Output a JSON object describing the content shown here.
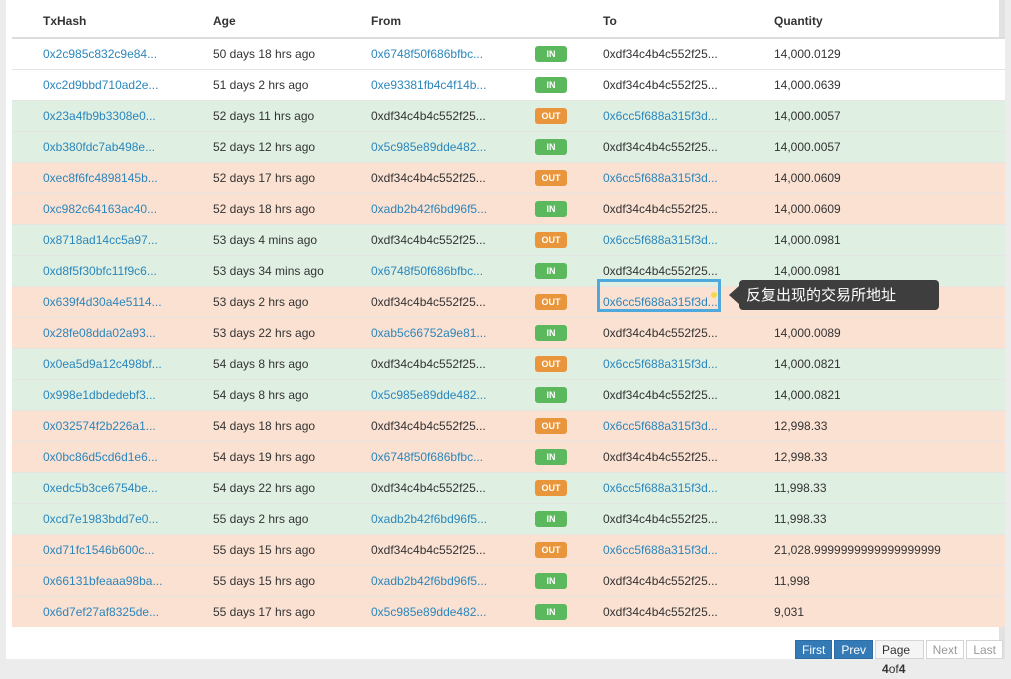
{
  "table": {
    "headers": [
      "TxHash",
      "Age",
      "From",
      "",
      "To",
      "Quantity"
    ],
    "rows": [
      {
        "hash": "0x2c985c832c9e84...",
        "age": "50 days 18 hrs ago",
        "from": "0x6748f50f686bfbc...",
        "from_link": true,
        "dir": "IN",
        "to": "0xdf34c4b4c552f25...",
        "to_link": false,
        "qty": "14,000.0129",
        "tone": "in-row"
      },
      {
        "hash": "0xc2d9bbd710ad2e...",
        "age": "51 days 2 hrs ago",
        "from": "0xe93381fb4c4f14b...",
        "from_link": true,
        "dir": "IN",
        "to": "0xdf34c4b4c552f25...",
        "to_link": false,
        "qty": "14,000.0639",
        "tone": "in-row"
      },
      {
        "hash": "0x23a4fb9b3308e0...",
        "age": "52 days 11 hrs ago",
        "from": "0xdf34c4b4c552f25...",
        "from_link": false,
        "dir": "OUT",
        "to": "0x6cc5f688a315f3d...",
        "to_link": true,
        "qty": "14,000.0057",
        "tone": "green-row"
      },
      {
        "hash": "0xb380fdc7ab498e...",
        "age": "52 days 12 hrs ago",
        "from": "0x5c985e89dde482...",
        "from_link": true,
        "dir": "IN",
        "to": "0xdf34c4b4c552f25...",
        "to_link": false,
        "qty": "14,000.0057",
        "tone": "green-row"
      },
      {
        "hash": "0xec8f6fc4898145b...",
        "age": "52 days 17 hrs ago",
        "from": "0xdf34c4b4c552f25...",
        "from_link": false,
        "dir": "OUT",
        "to": "0x6cc5f688a315f3d...",
        "to_link": true,
        "qty": "14,000.0609",
        "tone": "orange-row"
      },
      {
        "hash": "0xc982c64163ac40...",
        "age": "52 days 18 hrs ago",
        "from": "0xadb2b42f6bd96f5...",
        "from_link": true,
        "dir": "IN",
        "to": "0xdf34c4b4c552f25...",
        "to_link": false,
        "qty": "14,000.0609",
        "tone": "orange-row"
      },
      {
        "hash": "0x8718ad14cc5a97...",
        "age": "53 days 4 mins ago",
        "from": "0xdf34c4b4c552f25...",
        "from_link": false,
        "dir": "OUT",
        "to": "0x6cc5f688a315f3d...",
        "to_link": true,
        "qty": "14,000.0981",
        "tone": "green-row"
      },
      {
        "hash": "0xd8f5f30bfc11f9c6...",
        "age": "53 days 34 mins ago",
        "from": "0x6748f50f686bfbc...",
        "from_link": true,
        "dir": "IN",
        "to": "0xdf34c4b4c552f25...",
        "to_link": false,
        "qty": "14,000.0981",
        "tone": "green-row"
      },
      {
        "hash": "0x639f4d30a4e5114...",
        "age": "53 days 2 hrs ago",
        "from": "0xdf34c4b4c552f25...",
        "from_link": false,
        "dir": "OUT",
        "to": "0x6cc5f688a315f3d...",
        "to_link": true,
        "qty": "",
        "tone": "orange-row"
      },
      {
        "hash": "0x28fe08dda02a93...",
        "age": "53 days 22 hrs ago",
        "from": "0xab5c66752a9e81...",
        "from_link": true,
        "dir": "IN",
        "to": "0xdf34c4b4c552f25...",
        "to_link": false,
        "qty": "14,000.0089",
        "tone": "orange-row"
      },
      {
        "hash": "0x0ea5d9a12c498bf...",
        "age": "54 days 8 hrs ago",
        "from": "0xdf34c4b4c552f25...",
        "from_link": false,
        "dir": "OUT",
        "to": "0x6cc5f688a315f3d...",
        "to_link": true,
        "qty": "14,000.0821",
        "tone": "green-row"
      },
      {
        "hash": "0x998e1dbdedebf3...",
        "age": "54 days 8 hrs ago",
        "from": "0x5c985e89dde482...",
        "from_link": true,
        "dir": "IN",
        "to": "0xdf34c4b4c552f25...",
        "to_link": false,
        "qty": "14,000.0821",
        "tone": "green-row"
      },
      {
        "hash": "0x032574f2b226a1...",
        "age": "54 days 18 hrs ago",
        "from": "0xdf34c4b4c552f25...",
        "from_link": false,
        "dir": "OUT",
        "to": "0x6cc5f688a315f3d...",
        "to_link": true,
        "qty": "12,998.33",
        "tone": "orange-row"
      },
      {
        "hash": "0x0bc86d5cd6d1e6...",
        "age": "54 days 19 hrs ago",
        "from": "0x6748f50f686bfbc...",
        "from_link": true,
        "dir": "IN",
        "to": "0xdf34c4b4c552f25...",
        "to_link": false,
        "qty": "12,998.33",
        "tone": "orange-row"
      },
      {
        "hash": "0xedc5b3ce6754be...",
        "age": "54 days 22 hrs ago",
        "from": "0xdf34c4b4c552f25...",
        "from_link": false,
        "dir": "OUT",
        "to": "0x6cc5f688a315f3d...",
        "to_link": true,
        "qty": "11,998.33",
        "tone": "green-row"
      },
      {
        "hash": "0xcd7e1983bdd7e0...",
        "age": "55 days 2 hrs ago",
        "from": "0xadb2b42f6bd96f5...",
        "from_link": true,
        "dir": "IN",
        "to": "0xdf34c4b4c552f25...",
        "to_link": false,
        "qty": "11,998.33",
        "tone": "green-row"
      },
      {
        "hash": "0xd71fc1546b600c...",
        "age": "55 days 15 hrs ago",
        "from": "0xdf34c4b4c552f25...",
        "from_link": false,
        "dir": "OUT",
        "to": "0x6cc5f688a315f3d...",
        "to_link": true,
        "qty": "21,028.9999999999999999999",
        "tone": "orange-row"
      },
      {
        "hash": "0x66131bfeaaa98ba...",
        "age": "55 days 15 hrs ago",
        "from": "0xadb2b42f6bd96f5...",
        "from_link": true,
        "dir": "IN",
        "to": "0xdf34c4b4c552f25...",
        "to_link": false,
        "qty": "11,998",
        "tone": "orange-row"
      },
      {
        "hash": "0x6d7ef27af8325de...",
        "age": "55 days 17 hrs ago",
        "from": "0x5c985e89dde482...",
        "from_link": true,
        "dir": "IN",
        "to": "0xdf34c4b4c552f25...",
        "to_link": false,
        "qty": "9,031",
        "tone": "orange-row"
      }
    ]
  },
  "annotation": {
    "callout_text": "反复出现的交易所地址"
  },
  "pagination": {
    "first": "First",
    "prev": "Prev",
    "page_prefix": "Page ",
    "current": "4",
    "of_text": " of ",
    "total": "4",
    "next": "Next",
    "last": "Last"
  },
  "colors": {
    "link": "#2a86bc",
    "in_badge": "#5cb85c",
    "out_badge": "#e9953b",
    "green_row": "#dff0e3",
    "orange_row": "#fbe1d2",
    "highlight": "#4fa9dc"
  }
}
